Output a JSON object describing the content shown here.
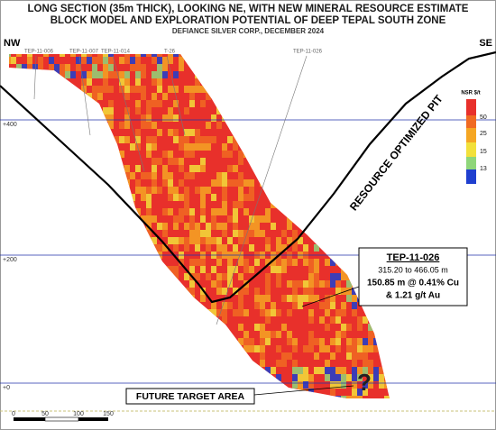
{
  "header": {
    "title_lines": [
      "LONG SECTION (35m THICK), LOOKING NE, WITH NEW MINERAL RESOURCE ESTIMATE",
      "BLOCK MODEL AND EXPLORATION POTENTIAL OF DEEP TEPAL SOUTH ZONE"
    ],
    "subtitle": "DEFIANCE SILVER CORP., DECEMBER 2024"
  },
  "directions": {
    "left": "NW",
    "right": "SE"
  },
  "drill_holes": [
    "TEP-11-006",
    "TEP-11-007",
    "TEP-11-014",
    "T-26",
    "TEP-11-026"
  ],
  "elevations": [
    "+400",
    "+200",
    "+0"
  ],
  "legend": {
    "title": "NSR $/t",
    "labels": [
      "50",
      "25",
      "15",
      "13"
    ]
  },
  "pit_label": "RESOURCE OPTIMIZED PIT",
  "callout": {
    "hole": "TEP-11-026",
    "interval": "315.20 to 466.05 m",
    "grade_cu": "150.85 m @ 0.41% Cu",
    "grade_au": "& 1.21 g/t Au"
  },
  "target": {
    "label": "FUTURE TARGET AREA",
    "mark": "?"
  },
  "scale_bar": [
    "0",
    "50",
    "100",
    "150"
  ]
}
